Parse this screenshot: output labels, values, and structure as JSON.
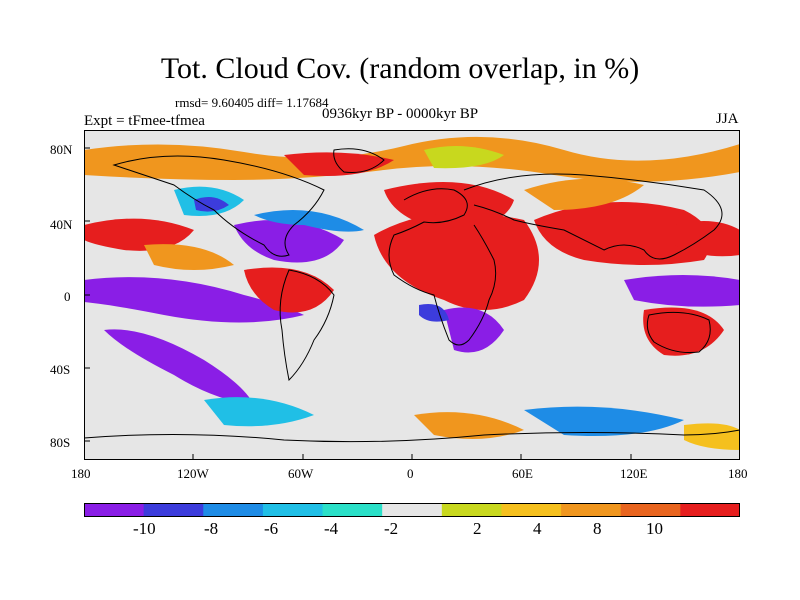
{
  "title": "Tot. Cloud Cov. (random overlap, in %)",
  "stats": "rmsd= 9.60405 diff= 1.17684",
  "experiment": "Expt = tFmee-tfmea",
  "period": "0936kyr BP - 0000kyr BP",
  "season": "JJA",
  "lat_labels": [
    "80N",
    "40N",
    "0",
    "40S",
    "80S"
  ],
  "lon_labels": [
    "180",
    "120W",
    "60W",
    "0",
    "60E",
    "120E",
    "180"
  ],
  "colorbar": {
    "labels": [
      "-10",
      "-8",
      "-6",
      "-4",
      "-2",
      "2",
      "4",
      "8",
      "10"
    ],
    "colors": [
      "#8a1ee6",
      "#3c3cdc",
      "#1e8ce6",
      "#20bfe6",
      "#2ae0c8",
      "#e6e6e6",
      "#c8d81e",
      "#f5c01e",
      "#f0961e",
      "#e8641e",
      "#e61e1e"
    ]
  },
  "colors": {
    "land_outline": "#000000",
    "neutral": "#e6e6e6"
  }
}
